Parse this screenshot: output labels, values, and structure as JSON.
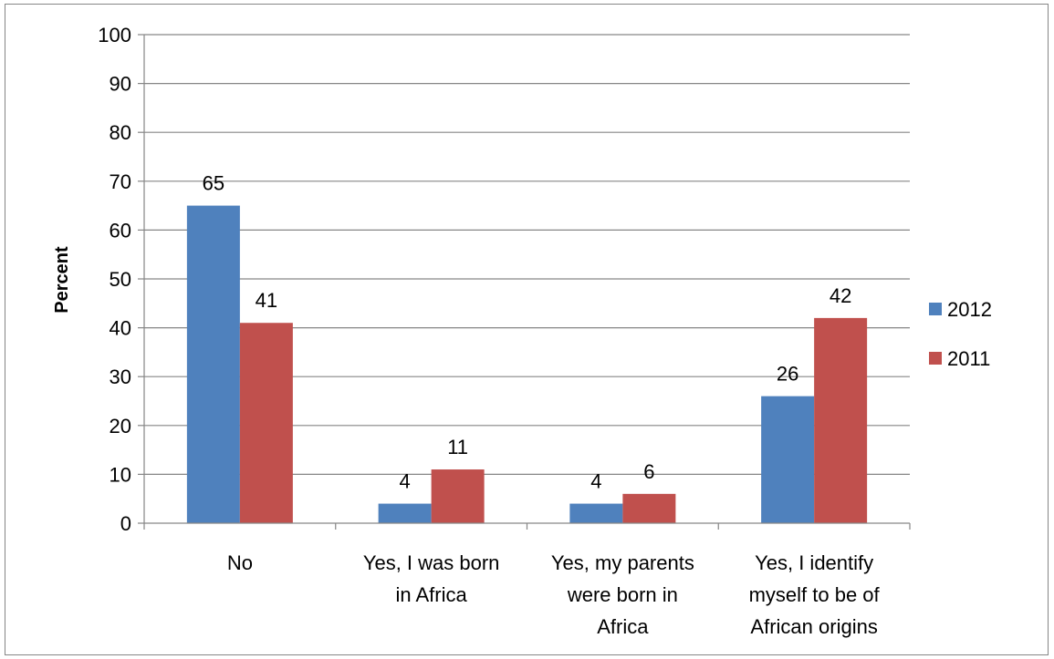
{
  "chart_data": {
    "type": "bar",
    "title": "",
    "xlabel": "",
    "ylabel": "Percent",
    "ylim": [
      0,
      100
    ],
    "yticks": [
      0,
      10,
      20,
      30,
      40,
      50,
      60,
      70,
      80,
      90,
      100
    ],
    "categories": [
      [
        "No"
      ],
      [
        "Yes, I was born",
        "in Africa"
      ],
      [
        "Yes, my parents",
        "were born in",
        "Africa"
      ],
      [
        "Yes, I identify",
        "myself to be of",
        "African origins"
      ]
    ],
    "series": [
      {
        "name": "2012",
        "color": "#4F81BD",
        "values": [
          65,
          4,
          4,
          26
        ]
      },
      {
        "name": "2011",
        "color": "#C0504D",
        "values": [
          41,
          11,
          6,
          42
        ]
      }
    ],
    "grid": true,
    "legend": "right"
  }
}
